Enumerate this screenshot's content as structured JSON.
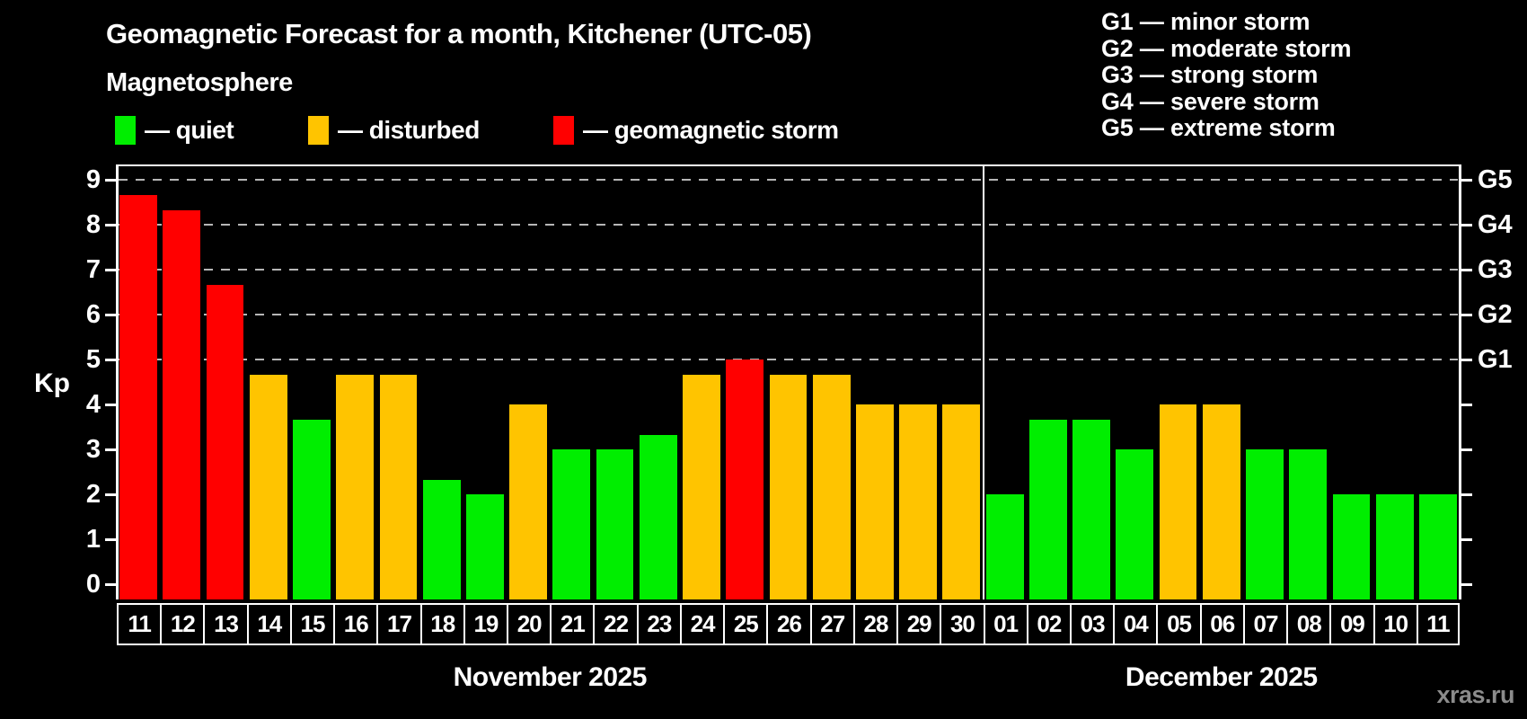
{
  "header": {
    "title": "Geomagnetic Forecast for a month, Kitchener (UTC-05)",
    "subtitle": "Magnetosphere"
  },
  "legend": {
    "items": [
      {
        "key": "quiet",
        "label": "— quiet",
        "color": "#00ee00"
      },
      {
        "key": "disturbed",
        "label": "— disturbed",
        "color": "#ffc400"
      },
      {
        "key": "storm",
        "label": "— geomagnetic storm",
        "color": "#ff0000"
      }
    ]
  },
  "g_legend": {
    "items": [
      {
        "label": "G1 — minor storm"
      },
      {
        "label": "G2 — moderate storm"
      },
      {
        "label": "G3 — strong storm"
      },
      {
        "label": "G4 — severe storm"
      },
      {
        "label": "G5 — extreme storm"
      }
    ]
  },
  "watermark": "xras.ru",
  "chart_data": {
    "type": "bar",
    "title": "Geomagnetic Forecast for a month, Kitchener (UTC-05)",
    "subtitle": "Magnetosphere",
    "ylabel": "Kp",
    "ylim": [
      0,
      9
    ],
    "yticks": [
      0,
      1,
      2,
      3,
      4,
      5,
      6,
      7,
      8,
      9
    ],
    "gridlines_kp": [
      5,
      6,
      7,
      8,
      9
    ],
    "grid": "dashed horizontal at storm levels only",
    "legend_position": "top-left",
    "right_axis": [
      {
        "label": "G1",
        "kp": 5
      },
      {
        "label": "G2",
        "kp": 6
      },
      {
        "label": "G3",
        "kp": 7
      },
      {
        "label": "G4",
        "kp": 8
      },
      {
        "label": "G5",
        "kp": 9
      }
    ],
    "status_colors": {
      "quiet": "#00ee00",
      "disturbed": "#ffc400",
      "storm": "#ff0000"
    },
    "months": [
      {
        "label": "November 2025",
        "days": [
          {
            "day": "11",
            "kp": 8.67,
            "status": "storm"
          },
          {
            "day": "12",
            "kp": 8.33,
            "status": "storm"
          },
          {
            "day": "13",
            "kp": 6.67,
            "status": "storm"
          },
          {
            "day": "14",
            "kp": 4.67,
            "status": "disturbed"
          },
          {
            "day": "15",
            "kp": 3.67,
            "status": "quiet"
          },
          {
            "day": "16",
            "kp": 4.67,
            "status": "disturbed"
          },
          {
            "day": "17",
            "kp": 4.67,
            "status": "disturbed"
          },
          {
            "day": "18",
            "kp": 2.33,
            "status": "quiet"
          },
          {
            "day": "19",
            "kp": 2.0,
            "status": "quiet"
          },
          {
            "day": "20",
            "kp": 4.0,
            "status": "disturbed"
          },
          {
            "day": "21",
            "kp": 3.0,
            "status": "quiet"
          },
          {
            "day": "22",
            "kp": 3.0,
            "status": "quiet"
          },
          {
            "day": "23",
            "kp": 3.33,
            "status": "quiet"
          },
          {
            "day": "24",
            "kp": 4.67,
            "status": "disturbed"
          },
          {
            "day": "25",
            "kp": 5.0,
            "status": "storm"
          },
          {
            "day": "26",
            "kp": 4.67,
            "status": "disturbed"
          },
          {
            "day": "27",
            "kp": 4.67,
            "status": "disturbed"
          },
          {
            "day": "28",
            "kp": 4.0,
            "status": "disturbed"
          },
          {
            "day": "29",
            "kp": 4.0,
            "status": "disturbed"
          },
          {
            "day": "30",
            "kp": 4.0,
            "status": "disturbed"
          }
        ]
      },
      {
        "label": "December 2025",
        "days": [
          {
            "day": "01",
            "kp": 2.0,
            "status": "quiet"
          },
          {
            "day": "02",
            "kp": 3.67,
            "status": "quiet"
          },
          {
            "day": "03",
            "kp": 3.67,
            "status": "quiet"
          },
          {
            "day": "04",
            "kp": 3.0,
            "status": "quiet"
          },
          {
            "day": "05",
            "kp": 4.0,
            "status": "disturbed"
          },
          {
            "day": "06",
            "kp": 4.0,
            "status": "disturbed"
          },
          {
            "day": "07",
            "kp": 3.0,
            "status": "quiet"
          },
          {
            "day": "08",
            "kp": 3.0,
            "status": "quiet"
          },
          {
            "day": "09",
            "kp": 2.0,
            "status": "quiet"
          },
          {
            "day": "10",
            "kp": 2.0,
            "status": "quiet"
          },
          {
            "day": "11",
            "kp": 2.0,
            "status": "quiet"
          }
        ]
      }
    ]
  }
}
